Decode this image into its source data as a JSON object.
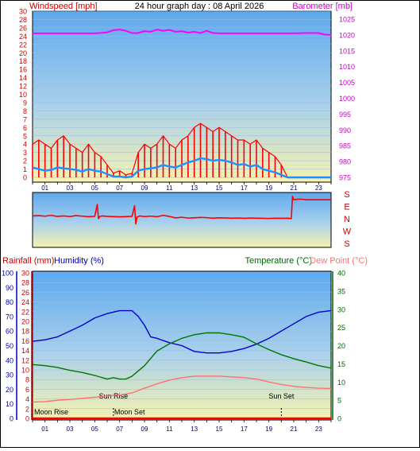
{
  "header": {
    "windspeed_label": "Windspeed [mph]",
    "title": "24 hour graph day : 08 April 2026",
    "barometer_label": "Barometer [mb]"
  },
  "lower_header": {
    "rainfall_label": "Rainfall (mm)",
    "humidity_label": "Humidity (%)",
    "temperature_label": "Temperature (°C)",
    "dewpoint_label": "Dew Point (°C)"
  },
  "colors": {
    "wind_gust": "#ff0000",
    "wind_avg": "#1e90ff",
    "barometer": "#ff00ff",
    "direction": "#ff0000",
    "humidity": "#0000cc",
    "temperature": "#007700",
    "dewpoint": "#ff7070",
    "rainfall": "#ff0000",
    "axis_left_top": "#cc0000",
    "axis_right_top": "#cc00cc",
    "axis_right_bottom": "#006600",
    "axis_blue": "#0000aa",
    "hour_ticks": "#000066"
  },
  "chart_data": [
    {
      "type": "line",
      "title": "24 hour graph day : 08 April 2026",
      "xlabel": "",
      "x_tick_labels": [
        "01",
        "03",
        "05",
        "07",
        "09",
        "11",
        "13",
        "15",
        "17",
        "19",
        "21",
        "23"
      ],
      "xlim": [
        0,
        24
      ],
      "y_left": {
        "label": "Windspeed [mph]",
        "lim": [
          0,
          30
        ],
        "ticks": [
          0,
          1,
          2,
          3,
          4,
          5,
          6,
          7,
          8,
          9,
          10,
          12,
          14,
          16,
          18,
          20,
          22,
          24,
          26,
          28,
          30
        ]
      },
      "y_right": {
        "label": "Barometer [mb]",
        "lim": [
          975,
          1025
        ],
        "ticks": [
          975,
          980,
          985,
          990,
          995,
          1000,
          1005,
          1010,
          1015,
          1020,
          1025
        ]
      },
      "grid": true,
      "series": [
        {
          "name": "Windspeed [mph]",
          "kind": "gust",
          "axis": "left",
          "x": [
            0,
            0.5,
            1,
            1.5,
            2,
            2.5,
            3,
            3.5,
            4,
            4.5,
            5,
            5.5,
            6,
            6.5,
            7,
            7.5,
            8,
            8.5,
            9,
            9.5,
            10,
            10.5,
            11,
            11.5,
            12,
            12.5,
            13,
            13.5,
            14,
            14.5,
            15,
            15.5,
            16,
            16.5,
            17,
            17.5,
            18,
            18.5,
            19,
            19.5,
            20,
            20.5,
            21,
            21.5,
            22,
            22.5,
            23,
            23.5,
            24
          ],
          "values": [
            4,
            4.5,
            4,
            3.5,
            4.5,
            5,
            4,
            3.5,
            3,
            4,
            3,
            2.5,
            1.5,
            0.5,
            0.8,
            0.3,
            0.5,
            3,
            4,
            3.5,
            4,
            5,
            4,
            3.5,
            4.5,
            5,
            6,
            6.5,
            6,
            5.5,
            6,
            5.5,
            5,
            4.5,
            4.5,
            4,
            4.5,
            3.5,
            3,
            2.5,
            1.5,
            0,
            0,
            0,
            0,
            0,
            0,
            0,
            0
          ]
        },
        {
          "name": "Windspeed [mph]",
          "kind": "average",
          "axis": "left",
          "x": [
            0,
            0.5,
            1,
            1.5,
            2,
            2.5,
            3,
            3.5,
            4,
            4.5,
            5,
            5.5,
            6,
            6.5,
            7,
            7.5,
            8,
            8.5,
            9,
            9.5,
            10,
            10.5,
            11,
            11.5,
            12,
            12.5,
            13,
            13.5,
            14,
            14.5,
            15,
            15.5,
            16,
            16.5,
            17,
            17.5,
            18,
            18.5,
            19,
            19.5,
            20,
            20.5,
            21,
            21.5,
            22,
            22.5,
            23,
            23.5,
            24
          ],
          "values": [
            1.2,
            1,
            0.8,
            0.9,
            1.2,
            1.1,
            1,
            0.9,
            0.7,
            1,
            0.8,
            0.7,
            0.4,
            0.1,
            0.1,
            0,
            0.1,
            0.8,
            1,
            1.1,
            1.2,
            1.5,
            1.3,
            1.2,
            1.5,
            1.8,
            2,
            2.3,
            2.2,
            2,
            2.1,
            2,
            1.8,
            1.5,
            1.6,
            1.3,
            1.5,
            1,
            0.8,
            0.6,
            0.3,
            0,
            0,
            0,
            0,
            0,
            0,
            0,
            0
          ]
        },
        {
          "name": "Barometer [mb]",
          "axis": "right",
          "x": [
            0,
            1,
            2,
            3,
            4,
            5,
            6,
            6.5,
            7,
            7.5,
            8,
            8.5,
            9,
            9.5,
            10,
            10.5,
            11,
            11.5,
            12,
            12.5,
            13,
            13.5,
            14,
            14.5,
            15,
            16,
            17,
            18,
            19,
            20,
            21,
            22,
            23,
            23.5,
            24
          ],
          "values": [
            1020.5,
            1020.5,
            1020.5,
            1020.5,
            1020.5,
            1020.5,
            1020.8,
            1021.5,
            1021.7,
            1021.3,
            1020.6,
            1020.6,
            1021.2,
            1021.0,
            1021.7,
            1021.3,
            1021.6,
            1021.0,
            1021.2,
            1020.7,
            1021.0,
            1020.6,
            1021.3,
            1020.6,
            1020.5,
            1020.5,
            1020.5,
            1020.5,
            1020.5,
            1020.5,
            1020.5,
            1020.6,
            1020.6,
            1020.1,
            1020.0
          ]
        }
      ]
    },
    {
      "type": "line",
      "title": "",
      "xlim": [
        0,
        24
      ],
      "y_labels": [
        "S",
        "E",
        "N",
        "W",
        "S"
      ],
      "series": [
        {
          "name": "",
          "x": [
            0,
            0.5,
            1,
            1.5,
            2,
            2.5,
            3,
            3.5,
            4,
            4.5,
            5,
            5.2,
            5.3,
            5.4,
            5.6,
            6,
            6.5,
            7,
            7.5,
            8,
            8.2,
            8.3,
            8.4,
            8.6,
            9,
            9.5,
            10,
            10.5,
            11,
            11.5,
            12,
            12.5,
            13,
            13.5,
            14,
            14.5,
            15,
            15.5,
            16,
            16.5,
            17,
            17.5,
            18,
            18.5,
            19,
            19.5,
            20,
            20.5,
            20.8,
            20.9,
            21,
            21.5,
            22,
            22.5,
            23,
            23.5,
            24
          ],
          "values": [
            210,
            212,
            208,
            214,
            206,
            210,
            205,
            212,
            208,
            204,
            207,
            295,
            190,
            205,
            210,
            206,
            205,
            203,
            205,
            207,
            285,
            150,
            200,
            210,
            205,
            208,
            204,
            214,
            206,
            195,
            200,
            194,
            196,
            199,
            197,
            193,
            196,
            195,
            193,
            194,
            192,
            194,
            193,
            192,
            191,
            193,
            192,
            193,
            190,
            355,
            330,
            335,
            330,
            330,
            330,
            330,
            330
          ]
        }
      ]
    },
    {
      "type": "line",
      "title": "",
      "x_tick_labels": [
        "01",
        "03",
        "05",
        "07",
        "09",
        "11",
        "13",
        "15",
        "17",
        "19",
        "21",
        "23"
      ],
      "xlim": [
        0,
        24
      ],
      "y_left_rain": {
        "label": "Rainfall (mm)",
        "lim": [
          0,
          30
        ],
        "ticks": [
          0,
          2,
          4,
          6,
          8,
          10,
          12,
          14,
          16,
          18,
          20,
          22,
          24,
          26,
          28,
          30
        ]
      },
      "y_left_humidity": {
        "label": "Humidity (%)",
        "lim": [
          0,
          100
        ],
        "ticks": [
          0,
          10,
          20,
          30,
          40,
          50,
          60,
          70,
          80,
          90,
          100
        ]
      },
      "y_right": {
        "label": "Temperature (°C)",
        "lim": [
          0,
          40
        ],
        "ticks": [
          0,
          5,
          10,
          15,
          20,
          25,
          30,
          35,
          40
        ]
      },
      "grid": true,
      "annotations": [
        {
          "text": "Moon Rise",
          "x": 1.5
        },
        {
          "text": "Sun Rise",
          "x": 6.5
        },
        {
          "text": "Moon Set",
          "x": 7.8
        },
        {
          "text": "Sun Set",
          "x": 20.0
        }
      ],
      "series": [
        {
          "name": "Humidity (%)",
          "axis": "humidity",
          "x": [
            0,
            1,
            2,
            3,
            4,
            5,
            6,
            7,
            8,
            8.5,
            9,
            9.5,
            10,
            11,
            12,
            13,
            14,
            15,
            16,
            17,
            18,
            19,
            20,
            21,
            22,
            23,
            24
          ],
          "values": [
            53,
            54,
            56,
            60,
            64,
            69,
            72,
            74,
            74,
            70,
            64,
            56,
            55,
            52,
            50,
            46,
            45,
            45,
            46,
            48,
            51,
            55,
            60,
            65,
            70,
            73,
            74
          ]
        },
        {
          "name": "Temperature (°C)",
          "axis": "right",
          "x": [
            0,
            1,
            2,
            3,
            4,
            5,
            6,
            6.5,
            7,
            7.5,
            8,
            9,
            10,
            11,
            12,
            13,
            14,
            15,
            16,
            17,
            18,
            19,
            20,
            21,
            22,
            23,
            24
          ],
          "values": [
            14.8,
            14.5,
            14,
            13.2,
            12.6,
            11.8,
            10.8,
            11.2,
            10.8,
            10.8,
            11.6,
            14.5,
            18.5,
            20.5,
            22.0,
            23.0,
            23.5,
            23.5,
            23.0,
            22.3,
            20.5,
            18.9,
            17.5,
            16.4,
            15.5,
            14.5,
            13.8
          ]
        },
        {
          "name": "Dew Point (°C)",
          "axis": "right",
          "x": [
            0,
            1,
            2,
            3,
            4,
            5,
            6,
            7,
            8,
            9,
            10,
            11,
            12,
            13,
            14,
            15,
            16,
            17,
            18,
            19,
            20,
            21,
            22,
            23,
            24
          ],
          "values": [
            4.5,
            4.6,
            5,
            5.2,
            5.5,
            5.8,
            6.2,
            6.4,
            7.0,
            8.3,
            9.5,
            10.5,
            11.2,
            11.6,
            11.6,
            11.6,
            11.4,
            11.2,
            10.8,
            10.0,
            9.3,
            8.8,
            8.5,
            8.3,
            8.2
          ]
        },
        {
          "name": "Rainfall (mm)",
          "axis": "rain",
          "x": [
            0,
            24
          ],
          "values": [
            0,
            0
          ]
        }
      ]
    }
  ]
}
